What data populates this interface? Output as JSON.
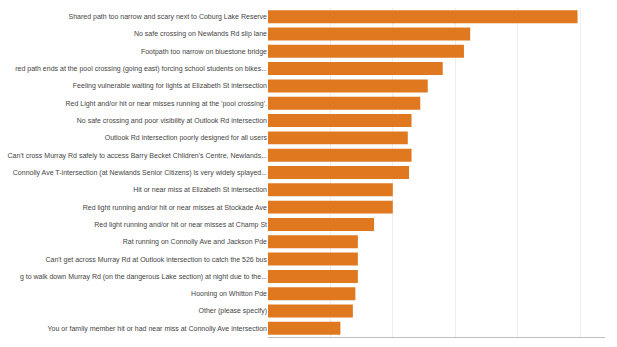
{
  "chart_data": {
    "type": "bar",
    "orientation": "horizontal",
    "categories": [
      "Shared path too narrow and scary next to Coburg Lake Reserve",
      "No safe crossing on Newlands Rd slip lane",
      "Footpath too narrow on bluestone bridge",
      "red path ends at the pool crossing (going east) forcing school students on bikes...",
      "Feeling vulnerable waiting for lights at Elizabeth St intersection",
      "Red Light and/or hit or near misses running at the 'pool crossing'.",
      "No safe crossing and poor visibility at Outlook Rd intersection",
      "Outlook Rd intersection poorly designed for all users",
      "Can't cross Murray Rd safely to access Barry Becket Children's Centre, Newlands...",
      "Connolly Ave T-intersection (at Newlands Senior Citizens) is very widely splayed...",
      "Hit or near miss at Elizabeth St intersection",
      "Red light running and/or hit or near misses at Stockade Ave",
      "Red light running and/or hit or near misses at Champ St",
      "Rat running on Connolly Ave and Jackson Pde",
      "Can't get across Murray Rd at Outlook intersection to catch the 526 bus",
      "g to walk down Murray Rd (on the dangerous Lake section) at night due to the...",
      "Hooning on Whitton Pde",
      "Other (please specify)",
      "You or family member hit or had near miss at Connolly Ave intersection"
    ],
    "values": [
      248,
      162,
      157,
      140,
      128,
      122,
      115,
      112,
      115,
      113,
      100,
      100,
      85,
      72,
      72,
      72,
      70,
      68,
      58
    ],
    "color": "#E07820",
    "xlim": [
      0,
      270
    ],
    "xticks": [
      0,
      50,
      100,
      150,
      200,
      250
    ],
    "grid": true,
    "tick_labels": "y"
  }
}
